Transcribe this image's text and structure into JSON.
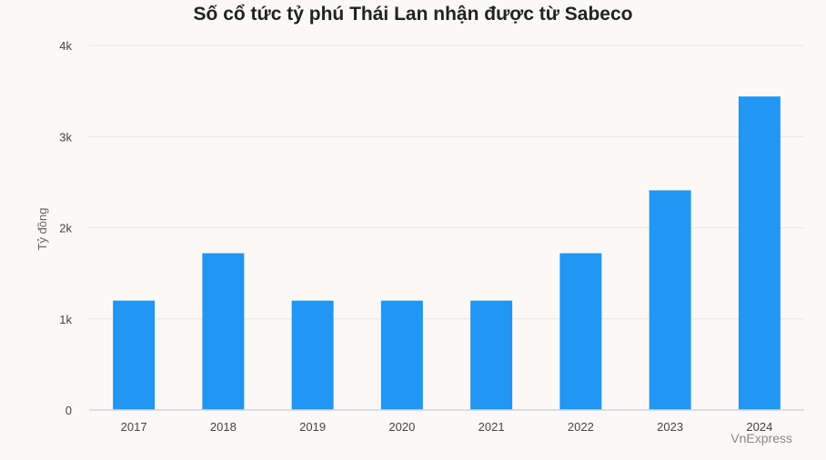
{
  "chart_data": {
    "type": "bar",
    "title": "Số cổ tức tỷ phú Thái Lan nhận được từ Sabeco",
    "ylabel": "Tỷ đồng",
    "xlabel": "",
    "categories": [
      "2017",
      "2018",
      "2019",
      "2020",
      "2021",
      "2022",
      "2023",
      "2024"
    ],
    "values": [
      1200,
      1720,
      1200,
      1200,
      1200,
      1720,
      2410,
      3440
    ],
    "ylim": [
      0,
      4000
    ],
    "yticks": [
      0,
      1000,
      2000,
      3000,
      4000
    ],
    "ytick_labels": [
      "0",
      "1k",
      "2k",
      "3k",
      "4k"
    ],
    "grid": true,
    "bar_color": "#2196f3",
    "credit": "VnExpress"
  }
}
